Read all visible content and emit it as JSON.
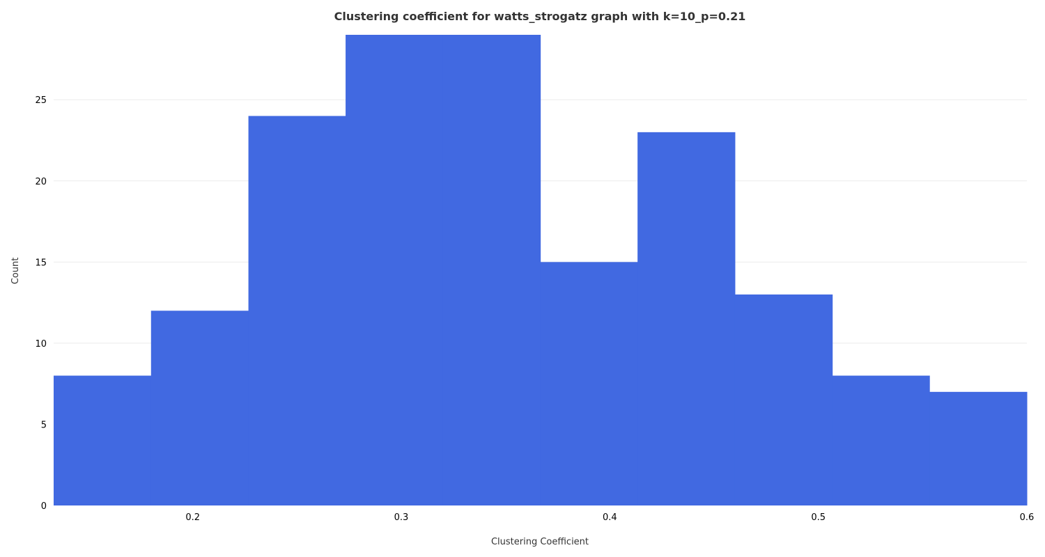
{
  "chart_data": {
    "type": "bar",
    "title": "Clustering coefficient for watts_strogatz graph with k=10_p=0.21",
    "xlabel": "Clustering Coefficient",
    "ylabel": "Count",
    "bin_edges": [
      0.1333,
      0.18,
      0.2267,
      0.2733,
      0.32,
      0.3667,
      0.4133,
      0.46,
      0.5067,
      0.5533,
      0.6
    ],
    "values": [
      8,
      12,
      24,
      29,
      29,
      15,
      23,
      13,
      8,
      7
    ],
    "xlim": [
      0.1333,
      0.6
    ],
    "ylim": [
      0,
      29
    ],
    "x_ticks": [
      "0.2",
      "0.3",
      "0.4",
      "0.5",
      "0.6"
    ],
    "y_ticks": [
      "0",
      "5",
      "10",
      "15",
      "20",
      "25"
    ],
    "grid": "horizontal",
    "bar_color": "#4169e1",
    "grid_color": "#ebebeb"
  }
}
